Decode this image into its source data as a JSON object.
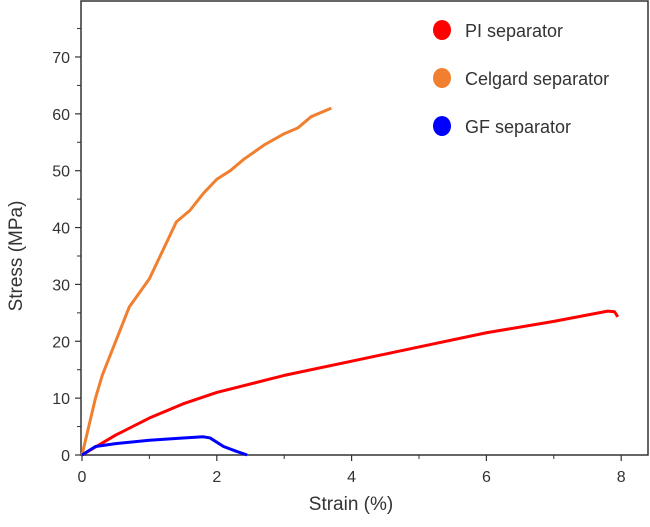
{
  "chart_data": {
    "type": "line",
    "title": "",
    "xlabel": "Strain (%)",
    "ylabel": "Stress (MPa)",
    "xlim": [
      0,
      8.4
    ],
    "ylim": [
      0,
      80
    ],
    "xticks": [
      0,
      2,
      4,
      6,
      8
    ],
    "yticks": [
      0,
      10,
      20,
      30,
      40,
      50,
      60,
      70
    ],
    "grid": false,
    "legend_position": "top-right",
    "series": [
      {
        "name": "PI separator",
        "color": "#ff0000",
        "x": [
          0,
          0.5,
          1,
          1.5,
          2,
          3,
          4,
          5,
          6,
          7,
          7.8,
          7.9,
          7.95
        ],
        "y": [
          0,
          3.5,
          6.5,
          9,
          11,
          14,
          16.5,
          19,
          21.5,
          23.5,
          25.3,
          25.2,
          24.3
        ]
      },
      {
        "name": "Celgard separator",
        "color": "#f08030",
        "x": [
          0,
          0.1,
          0.2,
          0.3,
          0.5,
          0.7,
          1.0,
          1.2,
          1.4,
          1.6,
          1.8,
          2.0,
          2.2,
          2.4,
          2.7,
          3.0,
          3.2,
          3.4,
          3.7
        ],
        "y": [
          0,
          5,
          10,
          14,
          20,
          26,
          31,
          36,
          41,
          43,
          46,
          48.5,
          50,
          52,
          54.5,
          56.5,
          57.5,
          59.5,
          61
        ]
      },
      {
        "name": "GF separator",
        "color": "#0000ff",
        "x": [
          0,
          0.2,
          0.5,
          1,
          1.5,
          1.8,
          1.9,
          2.1,
          2.3,
          2.45
        ],
        "y": [
          0,
          1.5,
          2,
          2.6,
          3,
          3.2,
          3,
          1.5,
          0.6,
          0
        ]
      }
    ]
  }
}
